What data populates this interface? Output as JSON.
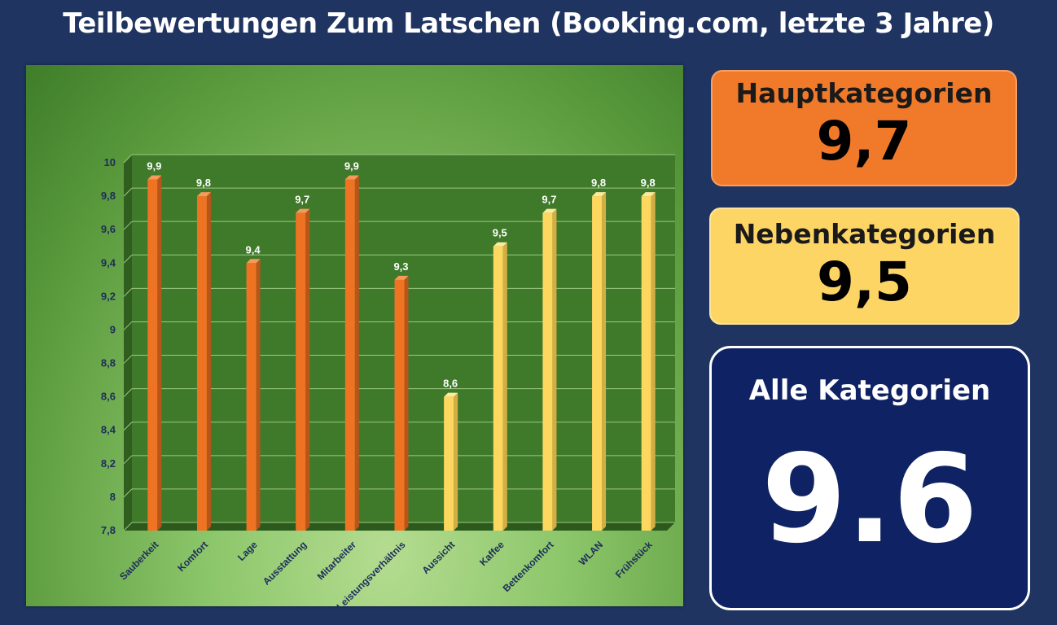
{
  "title": "Teilbewertungen Zum Latschen (Booking.com, letzte 3 Jahre)",
  "summary": {
    "main": {
      "label": "Hauptkategorien",
      "value": "9,7",
      "color": "#f07a2a"
    },
    "side": {
      "label": "Nebenkategorien",
      "value": "9,5",
      "color": "#fdd564"
    },
    "all": {
      "label": "Alle Kategorien",
      "value": "9.6",
      "color": "#0f2263"
    }
  },
  "chart_data": {
    "type": "bar",
    "categories": [
      "Sauberkeit",
      "Komfort",
      "Lage",
      "Ausstattung",
      "Mitarbeiter",
      "Preis-Leistungsverhältnis",
      "Aussicht",
      "Kaffee",
      "Bettenkomfort",
      "WLAN",
      "Frühstück"
    ],
    "values": [
      9.9,
      9.8,
      9.4,
      9.7,
      9.9,
      9.3,
      8.6,
      9.5,
      9.7,
      9.8,
      9.8
    ],
    "value_labels": [
      "9,9",
      "9,8",
      "9,4",
      "9,7",
      "9,9",
      "9,3",
      "8,6",
      "9,5",
      "9,7",
      "9,8",
      "9,8"
    ],
    "groups": [
      "main",
      "main",
      "main",
      "main",
      "main",
      "main",
      "side",
      "side",
      "side",
      "side",
      "side"
    ],
    "group_colors": {
      "main": "#ee7424",
      "side": "#fdd75e"
    },
    "ylim": [
      7.8,
      10
    ],
    "yticks": [
      7.8,
      8,
      8.2,
      8.4,
      8.6,
      8.8,
      9,
      9.2,
      9.4,
      9.6,
      9.8,
      10
    ],
    "ytick_labels": [
      "7,8",
      "8",
      "8,2",
      "8,4",
      "8,6",
      "8,8",
      "9",
      "9,2",
      "9,4",
      "9,6",
      "9,8",
      "10"
    ],
    "grid": true,
    "plot_background": "#3f7a2a",
    "legend": "none"
  }
}
